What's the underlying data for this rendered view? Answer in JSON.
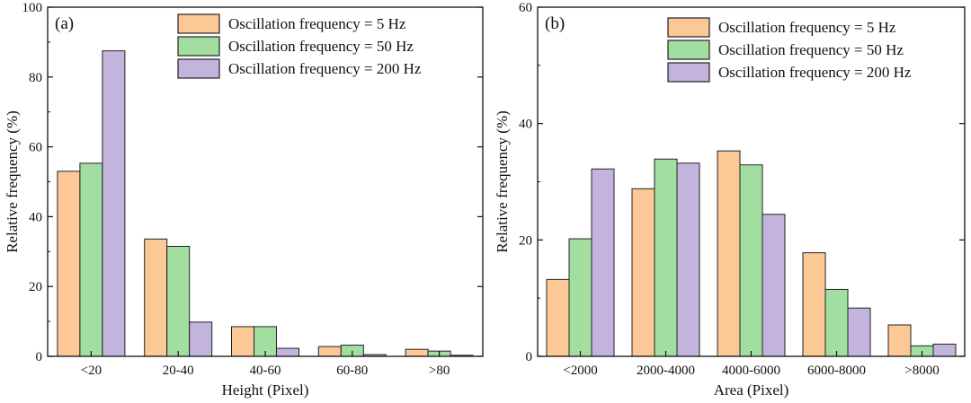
{
  "colors": {
    "series": [
      "#FBC896",
      "#A3DEA1",
      "#C2B4DC"
    ],
    "stroke": "#222222"
  },
  "chart_data": [
    {
      "type": "bar",
      "panel_label": "(a)",
      "xlabel": "Height (Pixel)",
      "ylabel": "Relative frequency (%)",
      "ylim": [
        0,
        100
      ],
      "yticks": [
        0,
        20,
        40,
        60,
        80,
        100
      ],
      "ytick_labels": [
        "0",
        "20",
        "40",
        "60",
        "80",
        "100"
      ],
      "categories": [
        "<20",
        "20-40",
        "40-60",
        "60-80",
        ">80"
      ],
      "legend_position": "top-right",
      "series": [
        {
          "name": "Oscillation frequency = 5 Hz",
          "values": [
            53.0,
            33.6,
            8.5,
            2.8,
            2.0
          ]
        },
        {
          "name": "Oscillation frequency = 50 Hz",
          "values": [
            55.3,
            31.5,
            8.5,
            3.2,
            1.5
          ]
        },
        {
          "name": "Oscillation frequency = 200 Hz",
          "values": [
            87.5,
            9.8,
            2.3,
            0.5,
            0.3
          ]
        }
      ]
    },
    {
      "type": "bar",
      "panel_label": "(b)",
      "xlabel": "Area (Pixel)",
      "ylabel": "Relative frequency (%)",
      "ylim": [
        0,
        60
      ],
      "yticks": [
        0,
        20,
        40,
        60
      ],
      "ytick_labels": [
        "0",
        "20",
        "40",
        "60"
      ],
      "categories": [
        "<2000",
        "2000-4000",
        "4000-6000",
        "6000-8000",
        ">8000"
      ],
      "legend_position": "top-right",
      "series": [
        {
          "name": "Oscillation frequency = 5 Hz",
          "values": [
            13.2,
            28.8,
            35.3,
            17.8,
            5.4
          ]
        },
        {
          "name": "Oscillation frequency = 50 Hz",
          "values": [
            20.2,
            33.9,
            32.9,
            11.5,
            1.8
          ]
        },
        {
          "name": "Oscillation frequency = 200 Hz",
          "values": [
            32.2,
            33.2,
            24.4,
            8.3,
            2.1
          ]
        }
      ]
    }
  ]
}
